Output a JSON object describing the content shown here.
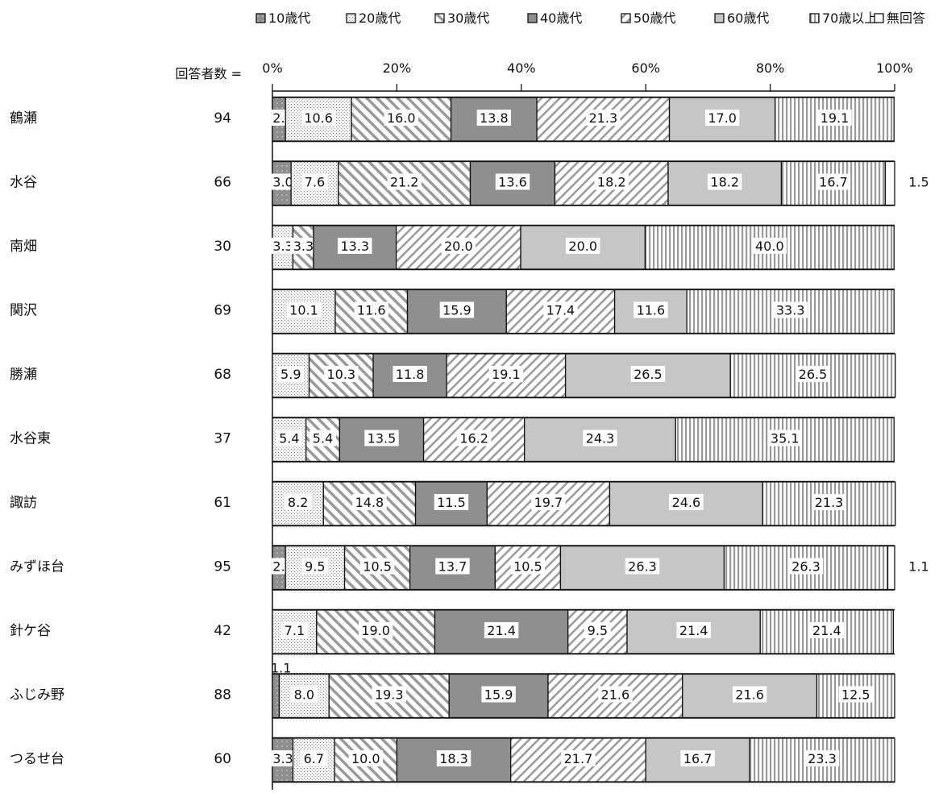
{
  "chart_data": {
    "type": "bar",
    "orientation": "horizontal",
    "stacked": true,
    "percent": true,
    "legend_position": "top",
    "xlim": [
      0,
      100
    ],
    "x_ticks": [
      "0%",
      "20%",
      "40%",
      "60%",
      "80%",
      "100%"
    ],
    "respondents_header": "回答者数 =",
    "categories": [
      "鶴瀬",
      "水谷",
      "南畑",
      "関沢",
      "勝瀬",
      "水谷東",
      "諏訪",
      "みずほ台",
      "針ケ谷",
      "ふじみ野",
      "つるせ台"
    ],
    "respondents": [
      "94",
      "66",
      "30",
      "69",
      "68",
      "37",
      "61",
      "95",
      "42",
      "88",
      "60"
    ],
    "series": [
      {
        "name": "10歳代",
        "values": [
          2.1,
          3.0,
          0.0,
          0.0,
          0.0,
          0.0,
          0.0,
          2.1,
          0.0,
          1.1,
          3.3
        ],
        "labels": [
          "2.1",
          "3.0",
          "",
          "",
          "",
          "",
          "",
          "2.1",
          "",
          "1.1",
          "3.3"
        ]
      },
      {
        "name": "20歳代",
        "values": [
          10.6,
          7.6,
          3.3,
          10.1,
          5.9,
          5.4,
          8.2,
          9.5,
          7.1,
          8.0,
          6.7
        ],
        "labels": [
          "10.6",
          "7.6",
          "3.3",
          "10.1",
          "5.9",
          "5.4",
          "8.2",
          "9.5",
          "7.1",
          "8.0",
          "6.7"
        ]
      },
      {
        "name": "30歳代",
        "values": [
          16.0,
          21.2,
          3.3,
          11.6,
          10.3,
          5.4,
          14.8,
          10.5,
          19.0,
          19.3,
          10.0
        ],
        "labels": [
          "16.0",
          "21.2",
          "3.3",
          "11.6",
          "10.3",
          "5.4",
          "14.8",
          "10.5",
          "19.0",
          "19.3",
          "10.0"
        ]
      },
      {
        "name": "40歳代",
        "values": [
          13.8,
          13.6,
          13.3,
          15.9,
          11.8,
          13.5,
          11.5,
          13.7,
          21.4,
          15.9,
          18.3
        ],
        "labels": [
          "13.8",
          "13.6",
          "13.3",
          "15.9",
          "11.8",
          "13.5",
          "11.5",
          "13.7",
          "21.4",
          "15.9",
          "18.3"
        ]
      },
      {
        "name": "50歳代",
        "values": [
          21.3,
          18.2,
          20.0,
          17.4,
          19.1,
          16.2,
          19.7,
          10.5,
          9.5,
          21.6,
          21.7
        ],
        "labels": [
          "21.3",
          "18.2",
          "20.0",
          "17.4",
          "19.1",
          "16.2",
          "19.7",
          "10.5",
          "9.5",
          "21.6",
          "21.7"
        ]
      },
      {
        "name": "60歳代",
        "values": [
          17.0,
          18.2,
          20.0,
          11.6,
          26.5,
          24.3,
          24.6,
          26.3,
          21.4,
          21.6,
          16.7
        ],
        "labels": [
          "17.0",
          "18.2",
          "20.0",
          "11.6",
          "26.5",
          "24.3",
          "24.6",
          "26.3",
          "21.4",
          "21.6",
          "16.7"
        ]
      },
      {
        "name": "70歳以上",
        "values": [
          19.1,
          16.7,
          40.0,
          33.3,
          26.5,
          35.1,
          21.3,
          26.3,
          21.4,
          12.5,
          23.3
        ],
        "labels": [
          "19.1",
          "16.7",
          "40.0",
          "33.3",
          "26.5",
          "35.1",
          "21.3",
          "26.3",
          "21.4",
          "12.5",
          "23.3"
        ]
      },
      {
        "name": "無回答",
        "values": [
          0.0,
          1.5,
          0.0,
          0.0,
          0.0,
          0.0,
          0.0,
          1.1,
          0.0,
          0.0,
          0.0
        ],
        "labels": [
          "",
          "1.5",
          "",
          "",
          "",
          "",
          "",
          "1.1",
          "",
          "",
          ""
        ]
      }
    ],
    "colors": {
      "s10": "#8f8f8f",
      "s20": "#f2f2f2",
      "s30": "#ffffff",
      "s40": "#8f8f8f",
      "s50": "#ffffff",
      "s60": "#c6c6c6",
      "s70": "#ffffff",
      "none": "#ffffff",
      "stroke": "#111111"
    }
  }
}
